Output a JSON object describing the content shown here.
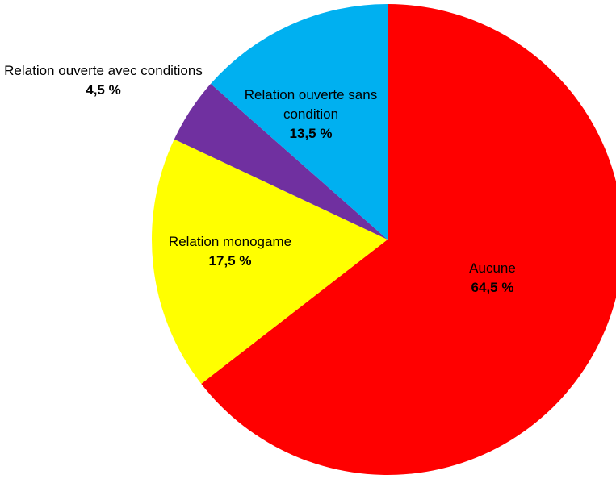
{
  "chart_data": {
    "type": "pie",
    "categories": [
      "Aucune",
      "Relation monogame",
      "Relation ouverte avec conditions",
      "Relation ouverte sans condition"
    ],
    "values": [
      64.5,
      17.5,
      4.5,
      13.5
    ],
    "value_labels": [
      "64,5 %",
      "17,5 %",
      "4,5 %",
      "13,5 %"
    ],
    "colors": [
      "#ff0000",
      "#ffff00",
      "#7030a0",
      "#00b0f0"
    ]
  }
}
